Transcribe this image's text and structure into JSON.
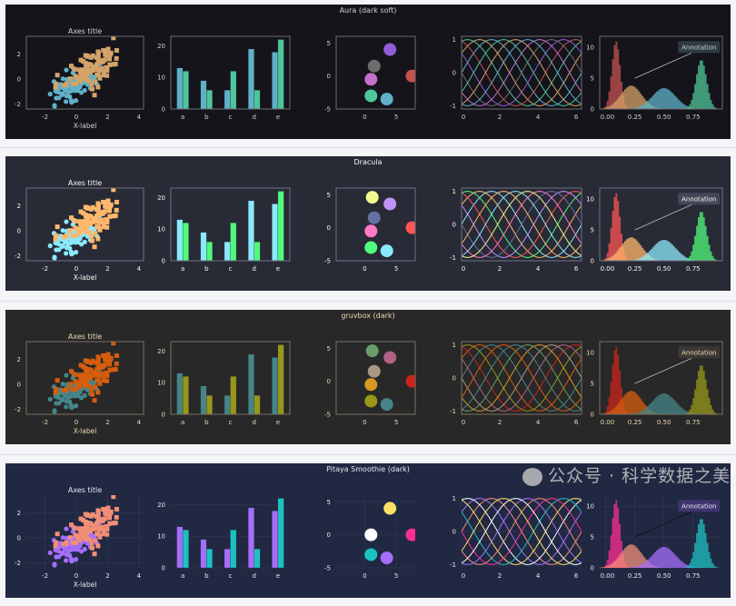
{
  "watermark": "公众号 · 科学数据之美",
  "common": {
    "axes_title": "Axes title",
    "xlabel": "X-label",
    "annotation": "Annotation"
  },
  "themes": [
    {
      "name": "Aura (dark soft)",
      "bg": "#15141b",
      "fg": "#d0d0d0",
      "frame": "#6d6d6d",
      "grid": false,
      "scatter": [
        "#5fb1c9",
        "#d4a36a"
      ],
      "bars": [
        "#5fb1c9",
        "#4fc59a"
      ],
      "circles": [
        "#8f5ed6",
        "#6d6d6d",
        "#c270c9",
        "#4fc59a",
        "#5fb1c9",
        "#c75252"
      ],
      "cycle": [
        "#5fb1c9",
        "#d4a36a",
        "#4fc59a",
        "#c75252",
        "#8f5ed6",
        "#6d6d6d",
        "#c270c9"
      ],
      "hist": [
        "#c75252",
        "#d4a36a",
        "#5fb1c9",
        "#4fc59a"
      ],
      "annot_bg": "#2d3a42"
    },
    {
      "name": "Dracula",
      "bg": "#282a36",
      "fg": "#f8f8f2",
      "frame": "#6f7386",
      "grid": false,
      "scatter": [
        "#8be9fd",
        "#ffb86c"
      ],
      "bars": [
        "#8be9fd",
        "#50fa7b"
      ],
      "circles": [
        "#f1fa8c",
        "#bd93f9",
        "#6272a4",
        "#ff79c6",
        "#50fa7b",
        "#8be9fd",
        "#ff5555"
      ],
      "cycle": [
        "#8be9fd",
        "#ffb86c",
        "#50fa7b",
        "#ff5555",
        "#bd93f9",
        "#6272a4",
        "#ff79c6",
        "#f1fa8c"
      ],
      "hist": [
        "#ff5555",
        "#ffb86c",
        "#8be9fd",
        "#50fa7b"
      ],
      "annot_bg": "#44475a"
    },
    {
      "name": "gruvbox (dark)",
      "bg": "#282828",
      "fg": "#ebdbb2",
      "frame": "#7c6f64",
      "grid": false,
      "scatter": [
        "#458588",
        "#d65d0e"
      ],
      "bars": [
        "#458588",
        "#98971a"
      ],
      "circles": [
        "#689d6a",
        "#b16286",
        "#a89984",
        "#d79921",
        "#98971a",
        "#458588",
        "#cc241d"
      ],
      "cycle": [
        "#458588",
        "#d65d0e",
        "#98971a",
        "#cc241d",
        "#b16286",
        "#a89984",
        "#d79921",
        "#689d6a"
      ],
      "hist": [
        "#cc241d",
        "#d65d0e",
        "#458588",
        "#98971a"
      ],
      "annot_bg": "#3c3836"
    },
    {
      "name": "Pitaya Smoothie (dark)",
      "bg": "#212842",
      "fg": "#e8e8f0",
      "frame": "none",
      "grid": true,
      "scatter": [
        "#a66efa",
        "#f28e78"
      ],
      "bars": [
        "#a66efa",
        "#1cc2c2"
      ],
      "circles": [
        "#ffe066",
        "#ffffff",
        "#1cc2c2",
        "#a66efa",
        "#ff2d96"
      ],
      "cycle": [
        "#f28e78",
        "#a66efa",
        "#ffffff",
        "#ffe066",
        "#1cc2c2",
        "#ff2d96"
      ],
      "hist": [
        "#ff2d96",
        "#f28e78",
        "#a66efa",
        "#1cc2c2"
      ],
      "annot_bg": "#3e3470"
    }
  ],
  "chart_data": [
    {
      "type": "scatter",
      "title": "Axes title",
      "xlabel": "X-label",
      "xlim": [
        -3.2,
        4.3
      ],
      "ylim": [
        -2.4,
        3.4
      ],
      "xticks": [
        -2,
        0,
        2,
        4
      ],
      "yticks": [
        -2,
        0,
        2
      ],
      "series": [
        {
          "name": "circles",
          "n": 100,
          "mean": [
            -0.3,
            -0.6
          ],
          "sd": [
            0.7,
            0.6
          ],
          "seed": 3
        },
        {
          "name": "squares",
          "n": 100,
          "mean": [
            0.8,
            0.8
          ],
          "sd": [
            0.9,
            1.0
          ],
          "seed": 7
        }
      ]
    },
    {
      "type": "bar",
      "categories": [
        "a",
        "b",
        "c",
        "d",
        "e"
      ],
      "ylim": [
        0,
        23
      ],
      "yticks": [
        0,
        10,
        20
      ],
      "series": [
        {
          "name": "s1",
          "values": [
            13,
            9,
            6,
            19,
            18
          ]
        },
        {
          "name": "s2",
          "values": [
            12,
            6,
            12,
            6,
            22
          ]
        }
      ]
    },
    {
      "type": "scatter",
      "xlim": [
        -4.5,
        8
      ],
      "ylim": [
        -5,
        6
      ],
      "xticks": [
        0,
        5
      ],
      "yticks": [
        -5,
        0,
        5
      ],
      "points": [
        [
          4,
          4
        ],
        [
          1.5,
          1.5
        ],
        [
          1,
          -0.5
        ],
        [
          1,
          -3
        ],
        [
          3.5,
          -3.5
        ],
        [
          7.5,
          0
        ]
      ]
    },
    {
      "type": "line",
      "xlim": [
        0,
        6.28
      ],
      "ylim": [
        -1.1,
        1.1
      ],
      "xticks": [
        0,
        2,
        4,
        6
      ],
      "yticks": [
        -1,
        0,
        1
      ],
      "function": "sin(x + phase)",
      "n_curves": 10
    },
    {
      "type": "area",
      "xlim": [
        -0.05,
        1.0
      ],
      "ylim": [
        0,
        11.8
      ],
      "xticks": [
        "0.00",
        "0.25",
        "0.50",
        "0.75"
      ],
      "yticks": [
        0,
        5,
        10
      ],
      "distributions": [
        {
          "mean": 0.09,
          "sd": 0.035,
          "peak": 11
        },
        {
          "mean": 0.22,
          "sd": 0.09,
          "peak": 3.8
        },
        {
          "mean": 0.5,
          "sd": 0.1,
          "peak": 3.4
        },
        {
          "mean": 0.82,
          "sd": 0.045,
          "peak": 8
        }
      ],
      "annotation": {
        "text": "Annotation",
        "xy": [
          0.25,
          5
        ],
        "xytext": [
          0.8,
          10
        ]
      }
    }
  ]
}
